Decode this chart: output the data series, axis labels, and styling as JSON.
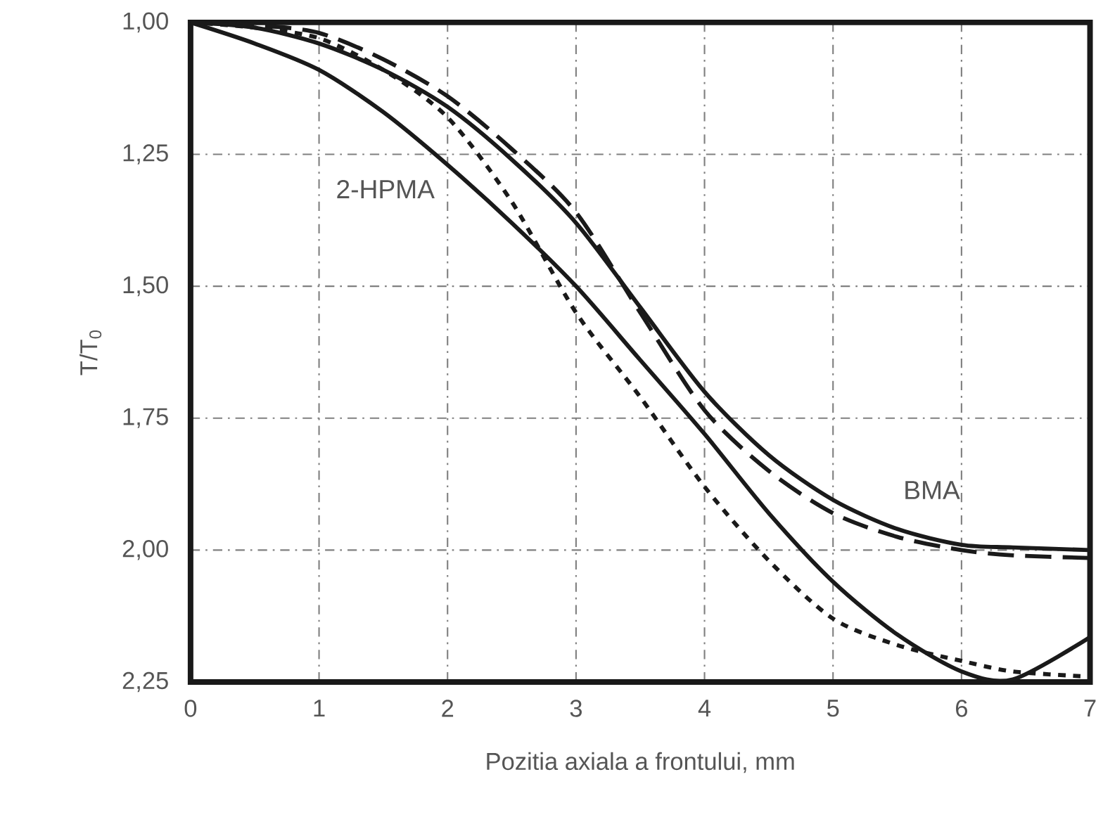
{
  "chart_data": {
    "type": "line",
    "xlabel": "Pozitia axiala a frontului, mm",
    "ylabel": "T/T$_{0}$",
    "xlim": [
      0,
      7
    ],
    "ylim": [
      2.25,
      1.0
    ],
    "xticks": [
      0,
      1,
      2,
      3,
      4,
      5,
      6,
      7
    ],
    "yticks": [
      {
        "value": 1.0,
        "label": "1,00"
      },
      {
        "value": 1.25,
        "label": "1,25"
      },
      {
        "value": 1.5,
        "label": "1,50"
      },
      {
        "value": 1.75,
        "label": "1,75"
      },
      {
        "value": 2.0,
        "label": "2,00"
      },
      {
        "value": 2.25,
        "label": "2,25"
      }
    ],
    "grid": true,
    "x": [
      0,
      0.5,
      1,
      1.5,
      2,
      2.5,
      3,
      3.5,
      4,
      4.5,
      5,
      5.5,
      6,
      6.4,
      7
    ],
    "series": [
      {
        "color": "#1a1a1a",
        "line_style": "solid",
        "values": [
          1.0,
          1.04,
          1.09,
          1.17,
          1.27,
          1.38,
          1.5,
          1.64,
          1.78,
          1.93,
          2.06,
          2.16,
          2.23,
          2.245,
          2.165
        ]
      },
      {
        "color": "#1a1a1a",
        "line_style": "solid",
        "values": [
          1.0,
          1.01,
          1.04,
          1.09,
          1.16,
          1.26,
          1.38,
          1.54,
          1.7,
          1.82,
          1.905,
          1.96,
          1.99,
          1.995,
          2.0
        ]
      },
      {
        "color": "#1a1a1a",
        "line_style": "dashed",
        "values": [
          1.0,
          1.005,
          1.02,
          1.07,
          1.14,
          1.24,
          1.36,
          1.55,
          1.735,
          1.85,
          1.93,
          1.975,
          2.0,
          2.01,
          2.015
        ]
      },
      {
        "color": "#1a1a1a",
        "line_style": "dotted",
        "values": [
          1.0,
          1.01,
          1.03,
          1.09,
          1.18,
          1.34,
          1.55,
          1.71,
          1.88,
          2.02,
          2.13,
          2.18,
          2.21,
          2.23,
          2.24
        ]
      }
    ],
    "annotations": [
      "2-HPMA",
      "BMA"
    ]
  }
}
